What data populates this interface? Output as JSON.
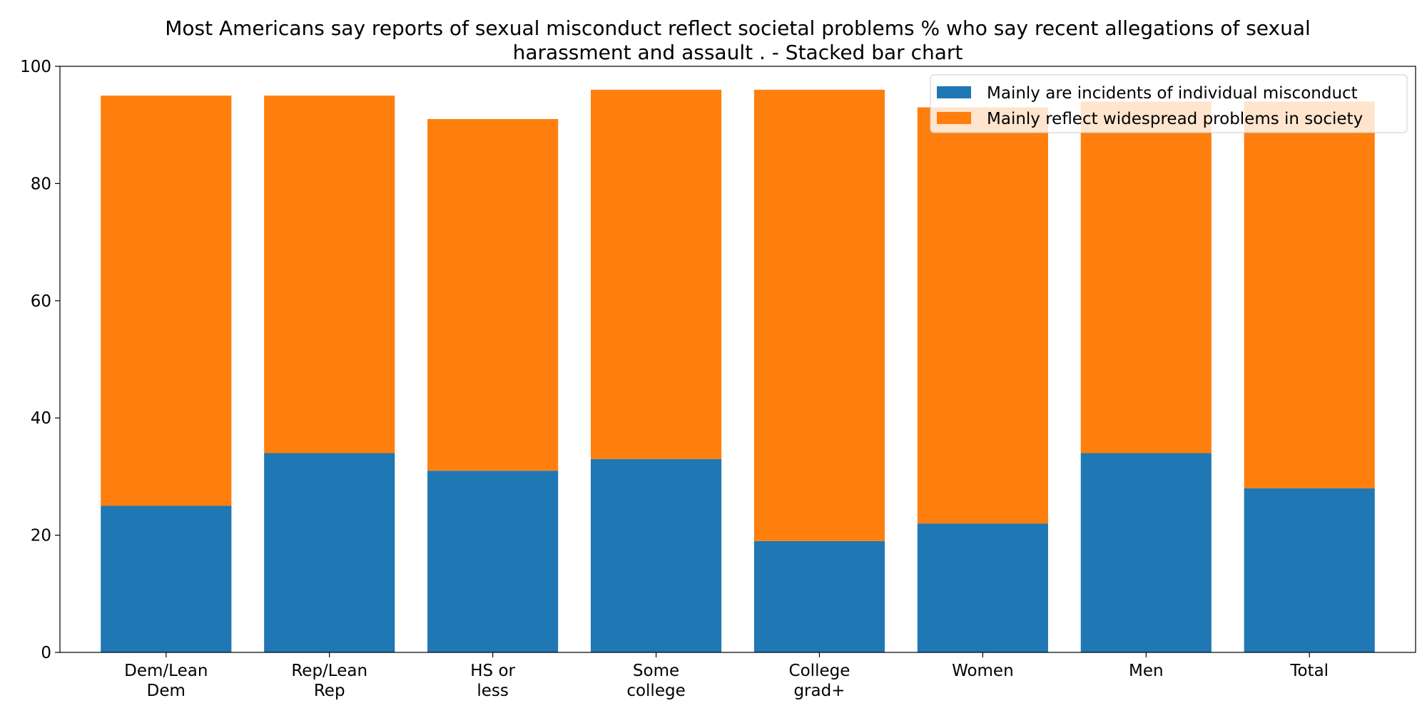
{
  "chart_data": {
    "type": "bar",
    "stacked": true,
    "title_lines": [
      "Most Americans say reports of sexual misconduct reflect societal problems % who say recent allegations of sexual",
      "harassment and assault .  - Stacked bar chart"
    ],
    "categories": [
      [
        "Dem/Lean",
        "Dem"
      ],
      [
        "Rep/Lean",
        "Rep"
      ],
      [
        "HS or",
        "less"
      ],
      [
        "Some",
        "college"
      ],
      [
        "College",
        "grad+"
      ],
      [
        "Women"
      ],
      [
        "Men"
      ],
      [
        "Total"
      ]
    ],
    "series": [
      {
        "name": "Mainly are incidents of individual misconduct",
        "color": "#1f77b4",
        "values": [
          25,
          34,
          31,
          33,
          19,
          22,
          34,
          28
        ]
      },
      {
        "name": "Mainly reflect widespread problems in society",
        "color": "#ff7f0e",
        "values": [
          70,
          61,
          60,
          63,
          77,
          71,
          60,
          66
        ]
      }
    ],
    "ylim": [
      0,
      100
    ],
    "yticks": [
      "0",
      "20",
      "40",
      "60",
      "80",
      "100"
    ],
    "grid": false,
    "legend_position": "top-right"
  }
}
